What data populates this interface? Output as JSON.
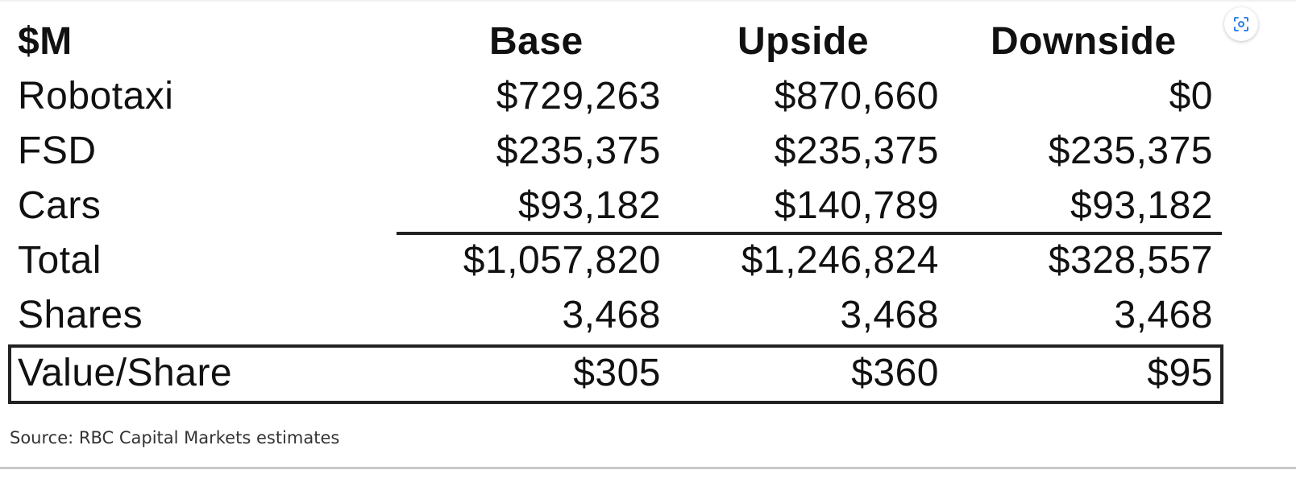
{
  "chart_data": {
    "type": "table",
    "columns": [
      "$M",
      "Base",
      "Upside",
      "Downside"
    ],
    "rows": [
      {
        "label": "Robotaxi",
        "values": [
          "$729,263",
          "$870,660",
          "$0"
        ]
      },
      {
        "label": "FSD",
        "values": [
          "$235,375",
          "$235,375",
          "$235,375"
        ]
      },
      {
        "label": "Cars",
        "values": [
          "$93,182",
          "$140,789",
          "$93,182"
        ]
      },
      {
        "label": "Total",
        "values": [
          "$1,057,820",
          "$1,246,824",
          "$328,557"
        ]
      },
      {
        "label": "Shares",
        "values": [
          "3,468",
          "3,468",
          "3,468"
        ]
      },
      {
        "label": "Value/Share",
        "values": [
          "$305",
          "$360",
          "$95"
        ]
      }
    ]
  },
  "source_note": "Source: RBC Capital Markets estimates",
  "icons": {
    "image_search": "visual-search-icon"
  },
  "colors": {
    "text": "#111111",
    "rule": "#222222",
    "accent_icon": "#1a73e8"
  }
}
